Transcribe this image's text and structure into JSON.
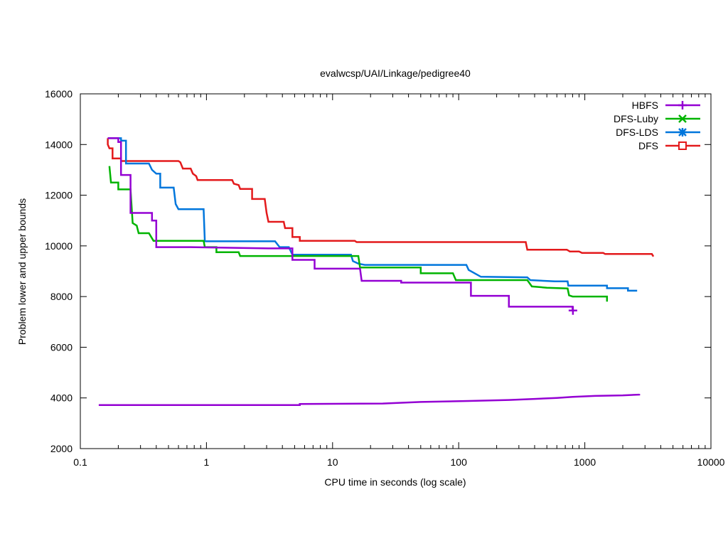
{
  "chart_data": {
    "type": "line",
    "title": "evalwcsp/UAI/Linkage/pedigree40",
    "xlabel": "CPU time in seconds (log scale)",
    "ylabel": "Problem lower and upper bounds",
    "xscale": "log",
    "xlim": [
      0.1,
      10000
    ],
    "ylim": [
      2000,
      16000
    ],
    "x_ticks": [
      0.1,
      1,
      10,
      100,
      1000,
      10000
    ],
    "x_tick_labels": [
      "0.1",
      "1",
      "10",
      "100",
      "1000",
      "10000"
    ],
    "y_ticks": [
      2000,
      4000,
      6000,
      8000,
      10000,
      12000,
      14000,
      16000
    ],
    "y_tick_labels": [
      "2000",
      "4000",
      "6000",
      "8000",
      "10000",
      "12000",
      "14000",
      "16000"
    ],
    "legend_position": "top-right",
    "series": [
      {
        "name": "HBFS",
        "color": "#9400d3",
        "marker": "plus",
        "points": [
          [
            0.165,
            14250
          ],
          [
            0.2,
            14250
          ],
          [
            0.2,
            14100
          ],
          [
            0.21,
            14100
          ],
          [
            0.21,
            12800
          ],
          [
            0.25,
            12800
          ],
          [
            0.25,
            11300
          ],
          [
            0.37,
            11300
          ],
          [
            0.37,
            11000
          ],
          [
            0.4,
            11000
          ],
          [
            0.4,
            9950
          ],
          [
            0.75,
            9950
          ],
          [
            0.75,
            9950
          ],
          [
            3.1,
            9900
          ],
          [
            4.8,
            9900
          ],
          [
            4.8,
            9450
          ],
          [
            7.2,
            9450
          ],
          [
            7.2,
            9100
          ],
          [
            16.5,
            9100
          ],
          [
            17,
            8620
          ],
          [
            35,
            8620
          ],
          [
            35,
            8550
          ],
          [
            125,
            8550
          ],
          [
            125,
            8030
          ],
          [
            250,
            8030
          ],
          [
            250,
            7600
          ],
          [
            800,
            7600
          ],
          [
            800,
            7450
          ],
          [
            820,
            7450
          ]
        ],
        "points2": [
          [
            0.14,
            3720
          ],
          [
            5.5,
            3720
          ],
          [
            5.5,
            3760
          ],
          [
            25,
            3780
          ],
          [
            50,
            3840
          ],
          [
            120,
            3880
          ],
          [
            250,
            3920
          ],
          [
            400,
            3960
          ],
          [
            600,
            4000
          ],
          [
            800,
            4040
          ],
          [
            1200,
            4080
          ],
          [
            2000,
            4100
          ],
          [
            2700,
            4130
          ],
          [
            2700,
            4160
          ]
        ],
        "marker_points": [
          [
            805,
            7450
          ]
        ]
      },
      {
        "name": "DFS-Luby",
        "color": "#00b400",
        "marker": "x",
        "points": [
          [
            0.17,
            13150
          ],
          [
            0.175,
            12500
          ],
          [
            0.2,
            12500
          ],
          [
            0.2,
            12230
          ],
          [
            0.25,
            12230
          ],
          [
            0.26,
            10900
          ],
          [
            0.28,
            10800
          ],
          [
            0.29,
            10500
          ],
          [
            0.35,
            10500
          ],
          [
            0.38,
            10200
          ],
          [
            0.95,
            10200
          ],
          [
            0.97,
            9950
          ],
          [
            1.2,
            9950
          ],
          [
            1.2,
            9750
          ],
          [
            1.8,
            9750
          ],
          [
            1.85,
            9600
          ],
          [
            13,
            9600
          ],
          [
            16,
            9600
          ],
          [
            16.5,
            9150
          ],
          [
            50,
            9150
          ],
          [
            50,
            8920
          ],
          [
            90,
            8920
          ],
          [
            95,
            8650
          ],
          [
            350,
            8650
          ],
          [
            380,
            8400
          ],
          [
            500,
            8350
          ],
          [
            730,
            8320
          ],
          [
            750,
            8050
          ],
          [
            800,
            8000
          ],
          [
            1500,
            8000
          ],
          [
            1500,
            7800
          ]
        ]
      },
      {
        "name": "DFS-LDS",
        "color": "#0076dc",
        "marker": "star",
        "points": [
          [
            0.165,
            14250
          ],
          [
            0.21,
            14250
          ],
          [
            0.21,
            14150
          ],
          [
            0.23,
            14150
          ],
          [
            0.23,
            13250
          ],
          [
            0.35,
            13250
          ],
          [
            0.37,
            13000
          ],
          [
            0.4,
            12850
          ],
          [
            0.43,
            12850
          ],
          [
            0.43,
            12300
          ],
          [
            0.55,
            12300
          ],
          [
            0.57,
            11650
          ],
          [
            0.6,
            11450
          ],
          [
            0.95,
            11450
          ],
          [
            0.97,
            10180
          ],
          [
            3.5,
            10180
          ],
          [
            3.8,
            9950
          ],
          [
            4.5,
            9950
          ],
          [
            4.8,
            9650
          ],
          [
            14,
            9650
          ],
          [
            14.5,
            9400
          ],
          [
            16,
            9300
          ],
          [
            18,
            9250
          ],
          [
            115,
            9250
          ],
          [
            120,
            9050
          ],
          [
            150,
            8780
          ],
          [
            350,
            8760
          ],
          [
            370,
            8650
          ],
          [
            580,
            8600
          ],
          [
            730,
            8600
          ],
          [
            740,
            8430
          ],
          [
            1500,
            8430
          ],
          [
            1500,
            8330
          ],
          [
            2200,
            8330
          ],
          [
            2200,
            8230
          ],
          [
            2600,
            8230
          ]
        ]
      },
      {
        "name": "DFS",
        "color": "#e31a1c",
        "marker": "square",
        "points": [
          [
            0.165,
            14250
          ],
          [
            0.165,
            14000
          ],
          [
            0.17,
            13850
          ],
          [
            0.18,
            13850
          ],
          [
            0.18,
            13450
          ],
          [
            0.21,
            13450
          ],
          [
            0.21,
            13350
          ],
          [
            0.6,
            13350
          ],
          [
            0.62,
            13300
          ],
          [
            0.65,
            13050
          ],
          [
            0.75,
            13050
          ],
          [
            0.78,
            12850
          ],
          [
            0.83,
            12750
          ],
          [
            0.85,
            12600
          ],
          [
            1.6,
            12600
          ],
          [
            1.65,
            12450
          ],
          [
            1.8,
            12400
          ],
          [
            1.85,
            12250
          ],
          [
            2.3,
            12250
          ],
          [
            2.3,
            11850
          ],
          [
            2.9,
            11850
          ],
          [
            3.0,
            11300
          ],
          [
            3.1,
            10950
          ],
          [
            4.1,
            10950
          ],
          [
            4.2,
            10700
          ],
          [
            4.8,
            10700
          ],
          [
            4.8,
            10350
          ],
          [
            5.5,
            10350
          ],
          [
            5.5,
            10200
          ],
          [
            15,
            10200
          ],
          [
            15.5,
            10150
          ],
          [
            340,
            10150
          ],
          [
            350,
            9850
          ],
          [
            720,
            9850
          ],
          [
            760,
            9780
          ],
          [
            900,
            9780
          ],
          [
            950,
            9720
          ],
          [
            1400,
            9720
          ],
          [
            1450,
            9680
          ],
          [
            3400,
            9680
          ],
          [
            3500,
            9580
          ]
        ]
      }
    ]
  }
}
